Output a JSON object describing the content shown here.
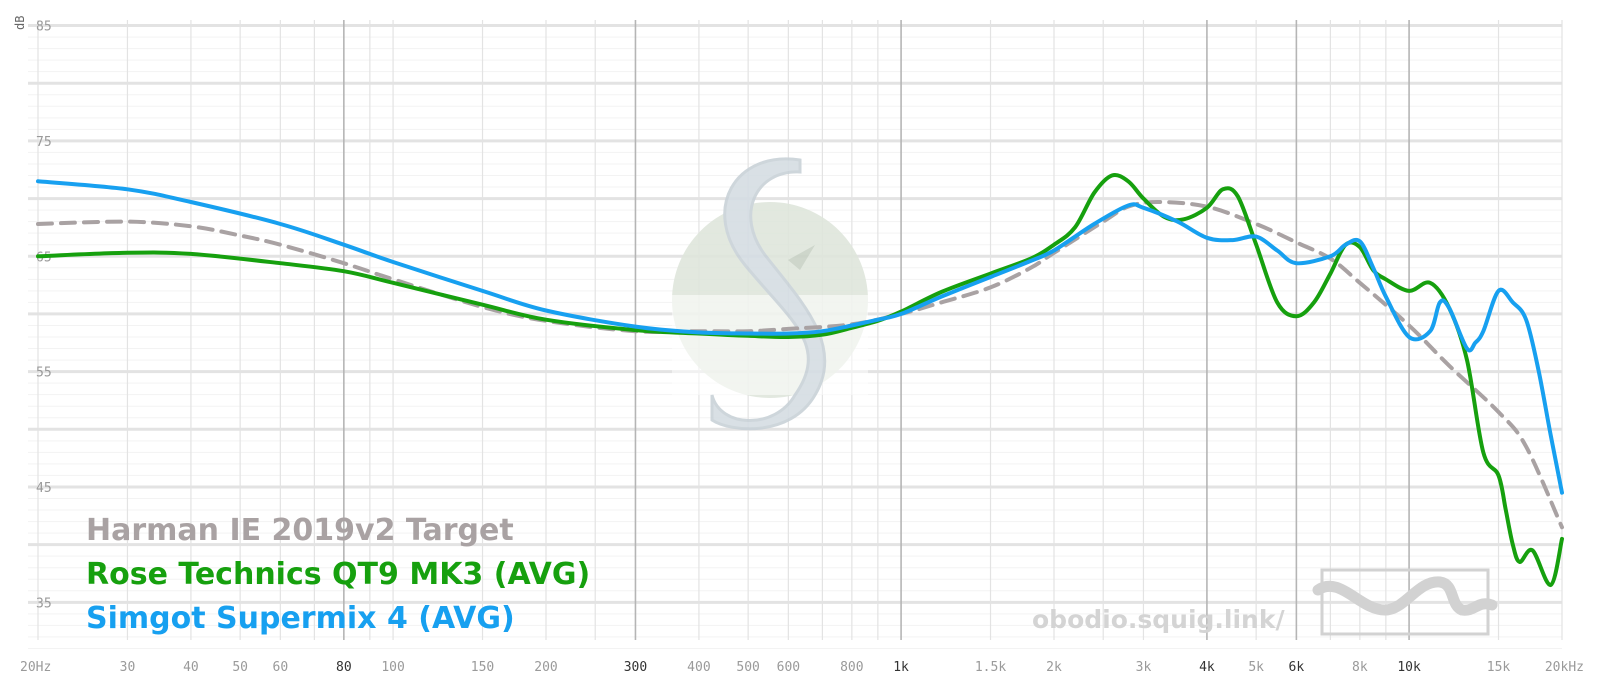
{
  "chart_data": {
    "type": "line",
    "title": "",
    "xlabel": "",
    "ylabel": "dB",
    "x_scale": "log",
    "xlim": [
      20,
      20000
    ],
    "ylim": [
      30,
      86
    ],
    "grid": true,
    "legend_position": "bottom-left",
    "x_tick_labels": [
      {
        "x": 20,
        "label": "20Hz",
        "emphasis": false
      },
      {
        "x": 30,
        "label": "30",
        "emphasis": false
      },
      {
        "x": 40,
        "label": "40",
        "emphasis": false
      },
      {
        "x": 50,
        "label": "50",
        "emphasis": false
      },
      {
        "x": 60,
        "label": "60",
        "emphasis": false
      },
      {
        "x": 80,
        "label": "80",
        "emphasis": true
      },
      {
        "x": 100,
        "label": "100",
        "emphasis": false
      },
      {
        "x": 150,
        "label": "150",
        "emphasis": false
      },
      {
        "x": 200,
        "label": "200",
        "emphasis": false
      },
      {
        "x": 300,
        "label": "300",
        "emphasis": true
      },
      {
        "x": 400,
        "label": "400",
        "emphasis": false
      },
      {
        "x": 500,
        "label": "500",
        "emphasis": false
      },
      {
        "x": 600,
        "label": "600",
        "emphasis": false
      },
      {
        "x": 800,
        "label": "800",
        "emphasis": false
      },
      {
        "x": 1000,
        "label": "1k",
        "emphasis": true
      },
      {
        "x": 1500,
        "label": "1.5k",
        "emphasis": false
      },
      {
        "x": 2000,
        "label": "2k",
        "emphasis": false
      },
      {
        "x": 3000,
        "label": "3k",
        "emphasis": false
      },
      {
        "x": 4000,
        "label": "4k",
        "emphasis": true
      },
      {
        "x": 5000,
        "label": "5k",
        "emphasis": false
      },
      {
        "x": 6000,
        "label": "6k",
        "emphasis": true
      },
      {
        "x": 8000,
        "label": "8k",
        "emphasis": false
      },
      {
        "x": 10000,
        "label": "10k",
        "emphasis": true
      },
      {
        "x": 15000,
        "label": "15k",
        "emphasis": false
      },
      {
        "x": 20000,
        "label": "20kHz",
        "emphasis": false
      }
    ],
    "x_gridlines": [
      20,
      30,
      40,
      50,
      60,
      70,
      80,
      90,
      100,
      150,
      200,
      250,
      300,
      400,
      500,
      600,
      700,
      800,
      900,
      1000,
      1500,
      2000,
      2500,
      3000,
      4000,
      5000,
      6000,
      7000,
      8000,
      9000,
      10000,
      15000,
      20000
    ],
    "x_major_gridlines": [
      80,
      300,
      1000,
      4000,
      6000,
      10000
    ],
    "y_ticks": [
      85,
      75,
      65,
      55,
      45,
      35
    ],
    "series": [
      {
        "name": "Harman IE 2019v2 Target",
        "color": "#a9a2a3",
        "dashed": true,
        "points": [
          [
            20,
            67.8
          ],
          [
            30,
            68.0
          ],
          [
            40,
            67.6
          ],
          [
            50,
            66.8
          ],
          [
            60,
            66.0
          ],
          [
            80,
            64.4
          ],
          [
            100,
            63.0
          ],
          [
            150,
            60.6
          ],
          [
            200,
            59.4
          ],
          [
            300,
            58.5
          ],
          [
            400,
            58.5
          ],
          [
            500,
            58.5
          ],
          [
            600,
            58.7
          ],
          [
            800,
            59.1
          ],
          [
            1000,
            60.0
          ],
          [
            1200,
            61.0
          ],
          [
            1500,
            62.3
          ],
          [
            1800,
            64.0
          ],
          [
            2000,
            65.3
          ],
          [
            2500,
            68.0
          ],
          [
            2800,
            69.3
          ],
          [
            3200,
            69.7
          ],
          [
            4000,
            69.3
          ],
          [
            5000,
            67.8
          ],
          [
            6000,
            66.2
          ],
          [
            7000,
            64.8
          ],
          [
            8000,
            62.7
          ],
          [
            10000,
            59.0
          ],
          [
            12000,
            55.5
          ],
          [
            15000,
            51.5
          ],
          [
            17000,
            48.5
          ],
          [
            20000,
            41.5
          ]
        ]
      },
      {
        "name": "Rose Technics QT9 MK3 (AVG)",
        "color": "#16a00e",
        "dashed": false,
        "points": [
          [
            20,
            65.0
          ],
          [
            30,
            65.3
          ],
          [
            40,
            65.2
          ],
          [
            60,
            64.4
          ],
          [
            80,
            63.7
          ],
          [
            100,
            62.7
          ],
          [
            150,
            60.8
          ],
          [
            200,
            59.5
          ],
          [
            300,
            58.6
          ],
          [
            400,
            58.3
          ],
          [
            500,
            58.1
          ],
          [
            600,
            58.0
          ],
          [
            700,
            58.2
          ],
          [
            800,
            58.8
          ],
          [
            900,
            59.4
          ],
          [
            1000,
            60.2
          ],
          [
            1200,
            61.9
          ],
          [
            1500,
            63.5
          ],
          [
            1800,
            64.8
          ],
          [
            2000,
            66.0
          ],
          [
            2200,
            67.5
          ],
          [
            2400,
            70.5
          ],
          [
            2600,
            72.0
          ],
          [
            2800,
            71.5
          ],
          [
            3000,
            70.0
          ],
          [
            3300,
            68.4
          ],
          [
            3600,
            68.2
          ],
          [
            4000,
            69.2
          ],
          [
            4300,
            70.8
          ],
          [
            4600,
            70.2
          ],
          [
            5000,
            66.0
          ],
          [
            5500,
            61.0
          ],
          [
            6000,
            59.8
          ],
          [
            6500,
            61.0
          ],
          [
            7000,
            63.5
          ],
          [
            7500,
            66.0
          ],
          [
            8000,
            65.8
          ],
          [
            8500,
            63.8
          ],
          [
            9000,
            63.0
          ],
          [
            10000,
            62.0
          ],
          [
            11000,
            62.7
          ],
          [
            12000,
            60.5
          ],
          [
            13000,
            56.0
          ],
          [
            14000,
            48.0
          ],
          [
            15000,
            46.0
          ],
          [
            15500,
            43.0
          ],
          [
            16000,
            40.0
          ],
          [
            16500,
            38.5
          ],
          [
            17500,
            39.5
          ],
          [
            19000,
            36.5
          ],
          [
            20000,
            40.5
          ]
        ]
      },
      {
        "name": "Simgot Supermix 4 (AVG)",
        "color": "#17a0f0",
        "dashed": false,
        "points": [
          [
            20,
            71.5
          ],
          [
            30,
            70.8
          ],
          [
            40,
            69.7
          ],
          [
            60,
            67.8
          ],
          [
            80,
            66.0
          ],
          [
            100,
            64.5
          ],
          [
            150,
            62.0
          ],
          [
            200,
            60.3
          ],
          [
            300,
            58.9
          ],
          [
            400,
            58.4
          ],
          [
            500,
            58.3
          ],
          [
            600,
            58.3
          ],
          [
            700,
            58.5
          ],
          [
            800,
            59.0
          ],
          [
            900,
            59.5
          ],
          [
            1000,
            60.0
          ],
          [
            1200,
            61.5
          ],
          [
            1500,
            63.2
          ],
          [
            1800,
            64.6
          ],
          [
            2000,
            65.5
          ],
          [
            2400,
            67.8
          ],
          [
            2800,
            69.4
          ],
          [
            3000,
            69.2
          ],
          [
            3500,
            68.0
          ],
          [
            4000,
            66.6
          ],
          [
            4500,
            66.4
          ],
          [
            5000,
            66.7
          ],
          [
            5500,
            65.5
          ],
          [
            6000,
            64.4
          ],
          [
            7000,
            65.0
          ],
          [
            7500,
            66.0
          ],
          [
            8000,
            66.3
          ],
          [
            8500,
            64.0
          ],
          [
            9000,
            61.5
          ],
          [
            10000,
            58.0
          ],
          [
            11000,
            58.5
          ],
          [
            11500,
            61.0
          ],
          [
            12000,
            60.5
          ],
          [
            13000,
            57.0
          ],
          [
            13500,
            57.5
          ],
          [
            14000,
            58.5
          ],
          [
            15000,
            62.0
          ],
          [
            16000,
            61.0
          ],
          [
            17000,
            59.5
          ],
          [
            18000,
            55.0
          ],
          [
            19000,
            49.5
          ],
          [
            20000,
            44.5
          ]
        ]
      }
    ]
  },
  "legend_labels": [
    "Harman IE 2019v2 Target",
    "Rose Technics QT9 MK3 (AVG)",
    "Simgot Supermix 4 (AVG)"
  ],
  "site_label": "obodio.squig.link/",
  "icons": {
    "watermark": "squiglink-s-logo-watermark",
    "site_logo": "squiglink-wave-logo"
  },
  "colors": {
    "background": "#ffffff",
    "grid": "#e6e6e6",
    "major_grid": "#b8b8b8",
    "watermark": "#dfe7dd"
  }
}
